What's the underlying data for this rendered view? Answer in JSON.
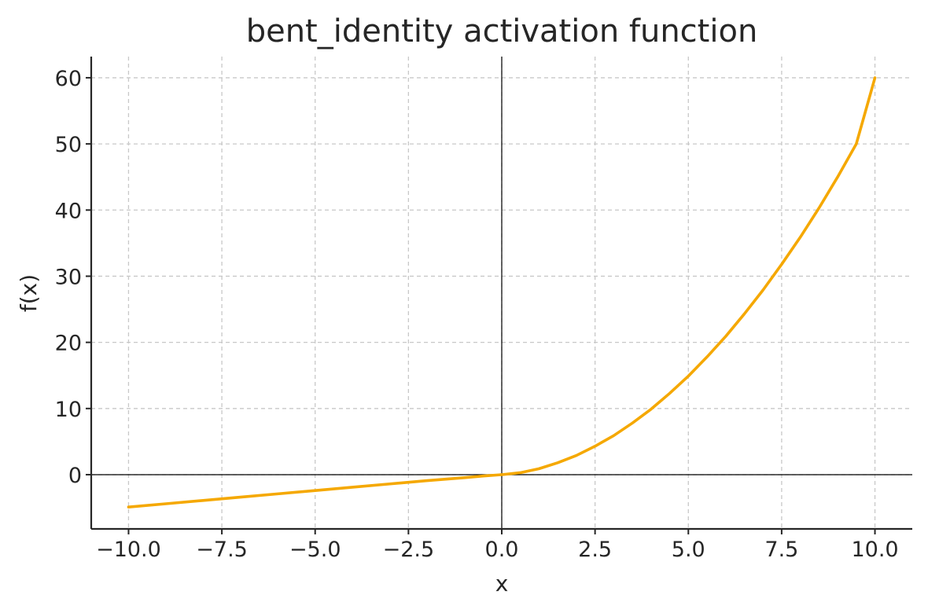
{
  "chart_data": {
    "type": "line",
    "title": "bent_identity activation function",
    "xlabel": "x",
    "ylabel": "f(x)",
    "xlim": [
      -11.0,
      11.0
    ],
    "ylim": [
      -8.2,
      63.2
    ],
    "grid": true,
    "x_ticks": [
      -10.0,
      -7.5,
      -5.0,
      -2.5,
      0.0,
      2.5,
      5.0,
      7.5,
      10.0
    ],
    "x_tick_labels": [
      "−10.0",
      "−7.5",
      "−5.0",
      "−2.5",
      "0.0",
      "2.5",
      "5.0",
      "7.5",
      "10.0"
    ],
    "y_ticks": [
      0,
      10,
      20,
      30,
      40,
      50,
      60
    ],
    "y_tick_labels": [
      "0",
      "10",
      "20",
      "30",
      "40",
      "50",
      "60"
    ],
    "series": [
      {
        "color": "#f5a800",
        "x": [
          -10,
          -9,
          -8,
          -7,
          -6,
          -5,
          -4,
          -3,
          -2,
          -1,
          -0.5,
          0,
          0.5,
          1,
          1.5,
          2,
          2.5,
          3,
          3.5,
          4,
          4.5,
          5,
          5.5,
          6,
          6.5,
          7,
          7.5,
          8,
          8.5,
          9,
          9.5,
          10
        ],
        "y": [
          -4.9,
          -4.4,
          -3.9,
          -3.4,
          -2.9,
          -2.4,
          -1.9,
          -1.4,
          -0.9,
          -0.45,
          -0.2,
          0,
          0.3,
          0.9,
          1.8,
          2.9,
          4.3,
          5.9,
          7.8,
          9.9,
          12.3,
          14.9,
          17.8,
          20.9,
          24.3,
          27.9,
          31.8,
          35.9,
          40.3,
          45.0,
          50.0,
          60.0
        ]
      }
    ],
    "reference_lines": {
      "x_zero": true,
      "y_zero": true
    }
  }
}
